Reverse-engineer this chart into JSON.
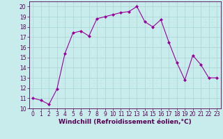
{
  "x": [
    0,
    1,
    2,
    3,
    4,
    5,
    6,
    7,
    8,
    9,
    10,
    11,
    12,
    13,
    14,
    15,
    16,
    17,
    18,
    19,
    20,
    21,
    22,
    23
  ],
  "y": [
    11.0,
    10.8,
    10.4,
    11.9,
    15.4,
    17.4,
    17.6,
    17.1,
    18.8,
    19.0,
    19.2,
    19.4,
    19.5,
    20.0,
    18.5,
    18.0,
    18.7,
    16.5,
    14.5,
    12.8,
    15.2,
    14.3,
    13.0,
    13.0
  ],
  "line_color": "#990099",
  "marker": "D",
  "marker_size": 2,
  "xlabel": "Windchill (Refroidissement éolien,°C)",
  "xlim": [
    -0.5,
    23.5
  ],
  "ylim": [
    10,
    20.5
  ],
  "yticks": [
    10,
    11,
    12,
    13,
    14,
    15,
    16,
    17,
    18,
    19,
    20
  ],
  "xticks": [
    0,
    1,
    2,
    3,
    4,
    5,
    6,
    7,
    8,
    9,
    10,
    11,
    12,
    13,
    14,
    15,
    16,
    17,
    18,
    19,
    20,
    21,
    22,
    23
  ],
  "background_color": "#c8ecec",
  "grid_color": "#aad4d4",
  "xlabel_fontsize": 6.5,
  "tick_fontsize": 5.5,
  "line_color_dark": "#550055"
}
